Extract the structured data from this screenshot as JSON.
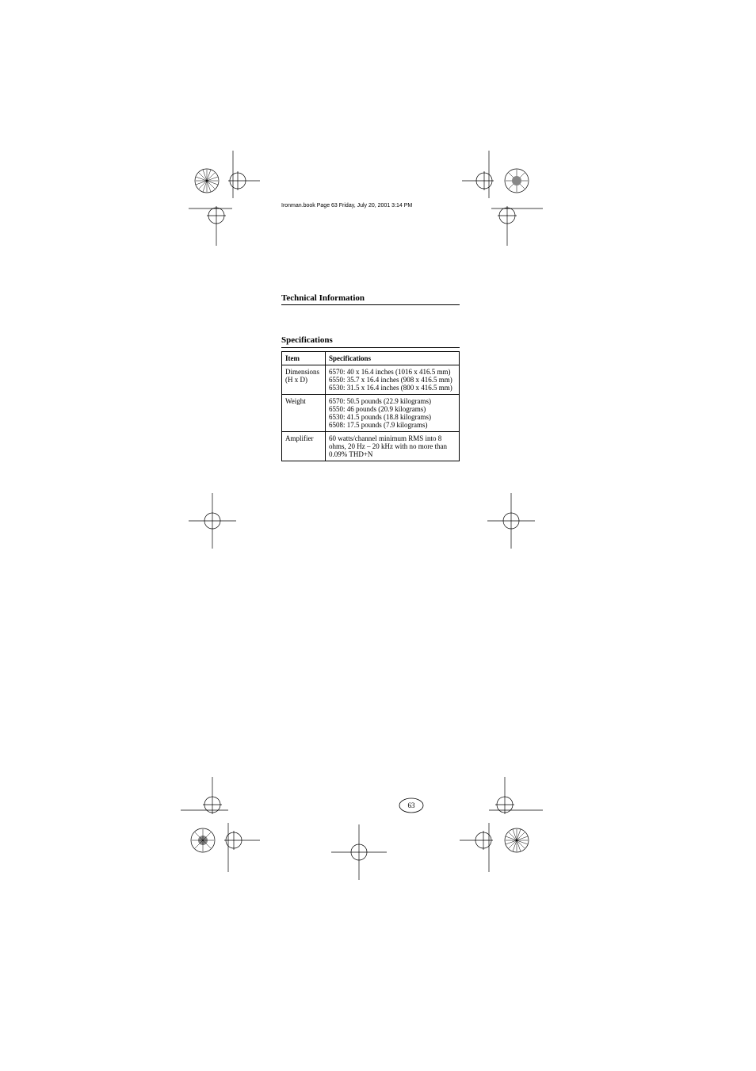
{
  "footer_text": "Ironman.book  Page 63  Friday, July 20, 2001  3:14 PM",
  "section_title": "Technical Information",
  "table_title": "Specifications",
  "table": {
    "columns": [
      "Item",
      "Specifications"
    ],
    "rows": [
      [
        "Dimensions (H x D)",
        "6570: 40 x 16.4 inches (1016 x 416.5 mm)\n6550: 35.7 x 16.4 inches (908 x 416.5 mm)\n6530: 31.5 x 16.4 inches (800 x 416.5 mm)"
      ],
      [
        "Weight",
        "6570: 50.5 pounds (22.9 kilograms)\n6550: 46 pounds (20.9 kilograms)\n6530: 41.5 pounds (18.8 kilograms)\n6508: 17.5 pounds (7.9 kilograms)"
      ],
      [
        "Amplifier",
        "60 watts/channel minimum RMS into 8 ohms, 20 Hz – 20 kHz with no more than 0.09% THD+N"
      ]
    ]
  },
  "page_number": "63"
}
